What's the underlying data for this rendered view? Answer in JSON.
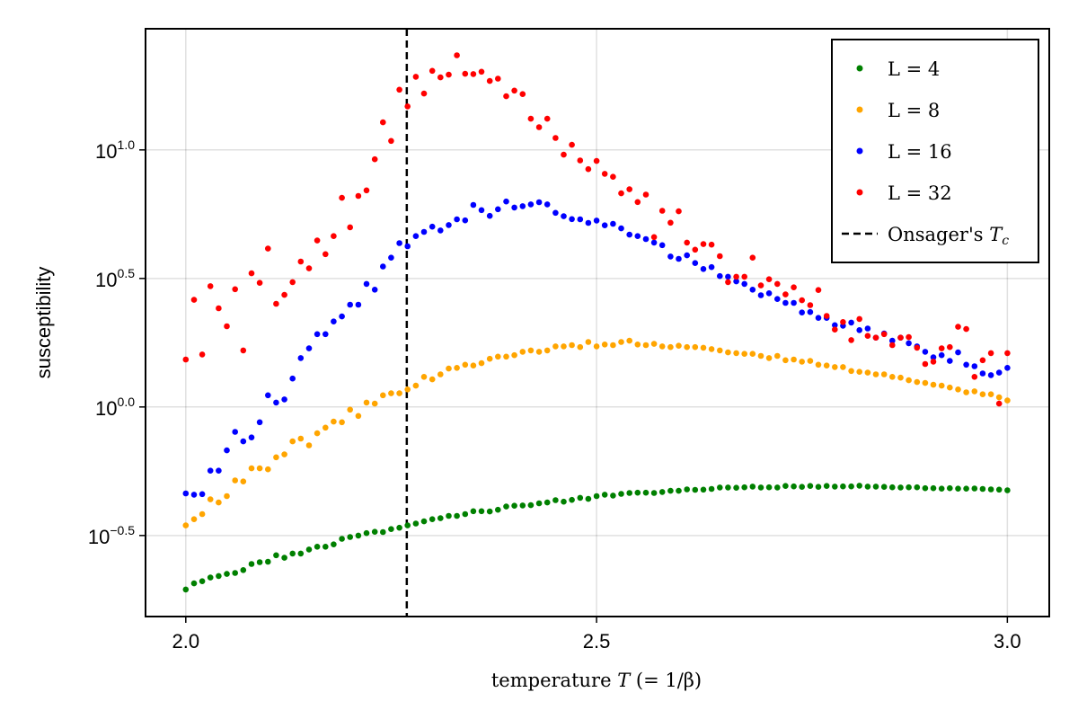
{
  "chart_data": {
    "type": "scatter",
    "xlabel": {
      "text": "temperature",
      "symbol": "T",
      "suffix": "(= 1/β)"
    },
    "ylabel": "susceptibility",
    "xlim": [
      1.951,
      3.051
    ],
    "ylim": [
      0.153,
      29.6
    ],
    "yscale": "log10",
    "grid": true,
    "legend_position": "top-right",
    "x_ticks": [
      {
        "value": 2.0,
        "label": "2.0"
      },
      {
        "value": 2.5,
        "label": "2.5"
      },
      {
        "value": 3.0,
        "label": "3.0"
      }
    ],
    "y_ticks": [
      {
        "value": 0.3162,
        "base": "10",
        "exp": "−0.5"
      },
      {
        "value": 1,
        "base": "10",
        "exp": "0.0"
      },
      {
        "value": 3.162,
        "base": "10",
        "exp": "0.5"
      },
      {
        "value": 10,
        "base": "10",
        "exp": "1.0"
      }
    ],
    "x": [
      2.0,
      2.01,
      2.02,
      2.03,
      2.04,
      2.05,
      2.06,
      2.07,
      2.08,
      2.09,
      2.1,
      2.11,
      2.12,
      2.13,
      2.14,
      2.15,
      2.16,
      2.17,
      2.18,
      2.19,
      2.2,
      2.21,
      2.22,
      2.23,
      2.24,
      2.25,
      2.26,
      2.27,
      2.28,
      2.29,
      2.3,
      2.31,
      2.32,
      2.33,
      2.34,
      2.35,
      2.36,
      2.37,
      2.38,
      2.39,
      2.4,
      2.41,
      2.42,
      2.43,
      2.44,
      2.45,
      2.46,
      2.47,
      2.48,
      2.49,
      2.5,
      2.51,
      2.52,
      2.53,
      2.54,
      2.55,
      2.56,
      2.57,
      2.58,
      2.59,
      2.6,
      2.61,
      2.62,
      2.63,
      2.64,
      2.65,
      2.66,
      2.67,
      2.68,
      2.69,
      2.7,
      2.71,
      2.72,
      2.73,
      2.74,
      2.75,
      2.76,
      2.77,
      2.78,
      2.79,
      2.8,
      2.81,
      2.82,
      2.83,
      2.84,
      2.85,
      2.86,
      2.87,
      2.88,
      2.89,
      2.9,
      2.91,
      2.92,
      2.93,
      2.94,
      2.95,
      2.96,
      2.97,
      2.98,
      2.99,
      3.0
    ],
    "series": [
      {
        "name": "L = 4",
        "color": "#008000",
        "values": [
          0.195,
          0.206,
          0.21,
          0.217,
          0.22,
          0.224,
          0.226,
          0.232,
          0.245,
          0.249,
          0.25,
          0.265,
          0.259,
          0.269,
          0.269,
          0.279,
          0.286,
          0.286,
          0.292,
          0.307,
          0.312,
          0.316,
          0.323,
          0.327,
          0.326,
          0.335,
          0.339,
          0.346,
          0.352,
          0.359,
          0.366,
          0.369,
          0.377,
          0.377,
          0.383,
          0.393,
          0.393,
          0.392,
          0.398,
          0.41,
          0.413,
          0.414,
          0.415,
          0.422,
          0.425,
          0.434,
          0.428,
          0.435,
          0.443,
          0.439,
          0.45,
          0.456,
          0.452,
          0.459,
          0.463,
          0.464,
          0.464,
          0.463,
          0.467,
          0.472,
          0.472,
          0.478,
          0.476,
          0.477,
          0.48,
          0.486,
          0.486,
          0.485,
          0.487,
          0.49,
          0.486,
          0.487,
          0.486,
          0.493,
          0.491,
          0.489,
          0.493,
          0.489,
          0.493,
          0.49,
          0.491,
          0.491,
          0.494,
          0.49,
          0.49,
          0.489,
          0.487,
          0.486,
          0.487,
          0.487,
          0.483,
          0.483,
          0.481,
          0.483,
          0.481,
          0.481,
          0.482,
          0.48,
          0.478,
          0.477,
          0.474
        ]
      },
      {
        "name": "L = 8",
        "color": "#FFA500",
        "values": [
          0.346,
          0.366,
          0.383,
          0.437,
          0.425,
          0.45,
          0.518,
          0.513,
          0.577,
          0.577,
          0.572,
          0.637,
          0.654,
          0.735,
          0.753,
          0.709,
          0.79,
          0.831,
          0.877,
          0.872,
          0.976,
          0.923,
          1.04,
          1.03,
          1.11,
          1.13,
          1.13,
          1.17,
          1.21,
          1.31,
          1.28,
          1.34,
          1.41,
          1.42,
          1.46,
          1.45,
          1.48,
          1.54,
          1.57,
          1.57,
          1.59,
          1.64,
          1.66,
          1.64,
          1.66,
          1.72,
          1.72,
          1.74,
          1.71,
          1.79,
          1.72,
          1.75,
          1.74,
          1.79,
          1.81,
          1.75,
          1.74,
          1.76,
          1.72,
          1.71,
          1.73,
          1.71,
          1.71,
          1.7,
          1.68,
          1.66,
          1.63,
          1.62,
          1.61,
          1.61,
          1.58,
          1.55,
          1.58,
          1.52,
          1.53,
          1.5,
          1.51,
          1.46,
          1.45,
          1.43,
          1.43,
          1.38,
          1.37,
          1.36,
          1.34,
          1.34,
          1.31,
          1.3,
          1.27,
          1.25,
          1.24,
          1.22,
          1.21,
          1.19,
          1.17,
          1.14,
          1.15,
          1.12,
          1.12,
          1.09,
          1.06
        ]
      },
      {
        "name": "L = 16",
        "color": "#0000FF",
        "values": [
          0.461,
          0.456,
          0.458,
          0.565,
          0.565,
          0.678,
          0.8,
          0.735,
          0.761,
          0.872,
          1.11,
          1.04,
          1.07,
          1.29,
          1.55,
          1.69,
          1.92,
          1.92,
          2.15,
          2.25,
          2.5,
          2.5,
          3.01,
          2.86,
          3.52,
          3.81,
          4.34,
          4.22,
          4.62,
          4.8,
          5.03,
          4.86,
          5.1,
          5.37,
          5.32,
          6.11,
          5.83,
          5.54,
          5.88,
          6.3,
          5.97,
          6.04,
          6.14,
          6.26,
          6.14,
          5.69,
          5.52,
          5.38,
          5.37,
          5.2,
          5.31,
          5.09,
          5.16,
          4.95,
          4.68,
          4.62,
          4.5,
          4.36,
          4.26,
          3.85,
          3.77,
          3.89,
          3.63,
          3.44,
          3.5,
          3.23,
          3.21,
          3.08,
          3.01,
          2.86,
          2.72,
          2.77,
          2.63,
          2.54,
          2.54,
          2.33,
          2.34,
          2.22,
          2.22,
          2.08,
          2.07,
          2.13,
          1.99,
          2.02,
          1.86,
          1.93,
          1.81,
          1.86,
          1.77,
          1.72,
          1.64,
          1.56,
          1.59,
          1.51,
          1.63,
          1.46,
          1.44,
          1.35,
          1.33,
          1.36,
          1.42
        ]
      },
      {
        "name": "L = 32",
        "color": "#FF0000",
        "values": [
          1.53,
          2.61,
          1.6,
          2.95,
          2.42,
          2.06,
          2.87,
          1.66,
          3.31,
          3.04,
          4.13,
          2.52,
          2.73,
          3.06,
          3.68,
          3.46,
          4.44,
          3.93,
          4.62,
          6.51,
          5.0,
          6.62,
          6.96,
          9.2,
          12.8,
          10.84,
          17.15,
          14.77,
          19.25,
          16.57,
          20.31,
          19.15,
          19.62,
          23.35,
          19.78,
          19.72,
          20.15,
          18.54,
          18.93,
          16.17,
          17.01,
          16.48,
          13.22,
          12.26,
          13.22,
          11.13,
          9.58,
          10.47,
          9.1,
          8.42,
          9.06,
          8.07,
          7.86,
          6.78,
          7.03,
          6.27,
          6.7,
          4.58,
          5.8,
          5.21,
          5.77,
          4.36,
          4.09,
          4.3,
          4.28,
          3.86,
          3.06,
          3.21,
          3.21,
          3.81,
          2.97,
          3.14,
          3.01,
          2.74,
          2.92,
          2.6,
          2.49,
          2.85,
          2.26,
          2.0,
          2.14,
          1.82,
          2.2,
          1.89,
          1.86,
          1.92,
          1.74,
          1.86,
          1.87,
          1.7,
          1.47,
          1.5,
          1.69,
          1.71,
          2.05,
          2.01,
          1.31,
          1.52,
          1.62,
          1.03,
          1.62
        ]
      }
    ],
    "vline": {
      "x": 2.269,
      "style": "dashed",
      "color": "#000000",
      "label_text": "Onsager's",
      "label_symbol": "T",
      "label_sub": "c"
    }
  }
}
